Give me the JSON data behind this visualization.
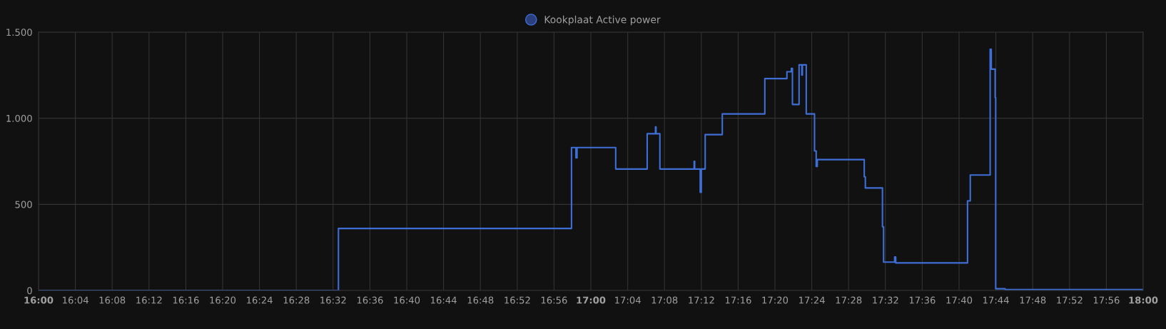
{
  "chart_data": {
    "type": "step",
    "x": [
      16.0,
      16.543,
      16.965,
      16.973,
      16.975,
      17.045,
      17.102,
      17.117,
      17.118,
      17.125,
      17.187,
      17.188,
      17.198,
      17.2,
      17.207,
      17.238,
      17.315,
      17.355,
      17.363,
      17.365,
      17.377,
      17.382,
      17.383,
      17.39,
      17.405,
      17.408,
      17.41,
      17.495,
      17.497,
      17.528,
      17.53,
      17.55,
      17.552,
      17.682,
      17.687,
      17.723,
      17.725,
      17.732,
      17.733,
      17.75,
      18.0
    ],
    "series": [
      {
        "name": "Kookplaat Active power",
        "color": "#3f6fd6",
        "values": [
          0,
          360,
          830,
          770,
          830,
          705,
          910,
          950,
          910,
          705,
          750,
          705,
          570,
          705,
          905,
          1025,
          1230,
          1270,
          1290,
          1080,
          1310,
          1250,
          1310,
          1025,
          810,
          720,
          760,
          660,
          595,
          370,
          165,
          195,
          160,
          520,
          670,
          1400,
          1285,
          1120,
          10,
          5,
          5
        ]
      }
    ],
    "xlim": [
      16.0,
      18.0
    ],
    "xticks": [
      {
        "value": 16.0,
        "label": "16:00"
      },
      {
        "value": 16.0667,
        "label": "16:04"
      },
      {
        "value": 16.1333,
        "label": "16:08"
      },
      {
        "value": 16.2,
        "label": "16:12"
      },
      {
        "value": 16.2667,
        "label": "16:16"
      },
      {
        "value": 16.3333,
        "label": "16:20"
      },
      {
        "value": 16.4,
        "label": "16:24"
      },
      {
        "value": 16.4667,
        "label": "16:28"
      },
      {
        "value": 16.5333,
        "label": "16:32"
      },
      {
        "value": 16.6,
        "label": "16:36"
      },
      {
        "value": 16.6667,
        "label": "16:40"
      },
      {
        "value": 16.7333,
        "label": "16:44"
      },
      {
        "value": 16.8,
        "label": "16:48"
      },
      {
        "value": 16.8667,
        "label": "16:52"
      },
      {
        "value": 16.9333,
        "label": "16:56"
      },
      {
        "value": 17.0,
        "label": "17:00"
      },
      {
        "value": 17.0667,
        "label": "17:04"
      },
      {
        "value": 17.1333,
        "label": "17:08"
      },
      {
        "value": 17.2,
        "label": "17:12"
      },
      {
        "value": 17.2667,
        "label": "17:16"
      },
      {
        "value": 17.3333,
        "label": "17:20"
      },
      {
        "value": 17.4,
        "label": "17:24"
      },
      {
        "value": 17.4667,
        "label": "17:28"
      },
      {
        "value": 17.5333,
        "label": "17:32"
      },
      {
        "value": 17.6,
        "label": "17:36"
      },
      {
        "value": 17.6667,
        "label": "17:40"
      },
      {
        "value": 17.7333,
        "label": "17:44"
      },
      {
        "value": 17.8,
        "label": "17:48"
      },
      {
        "value": 17.8667,
        "label": "17:52"
      },
      {
        "value": 17.9333,
        "label": "17:56"
      },
      {
        "value": 18.0,
        "label": "18:00"
      }
    ],
    "ylim": [
      0,
      1500
    ],
    "yticks": [
      0,
      500,
      {
        "value": 1000,
        "label": "1.000"
      },
      {
        "value": 1500,
        "label": "1.500"
      }
    ],
    "grid": true,
    "legend": "top",
    "marker": "none",
    "line_style": "solid"
  }
}
